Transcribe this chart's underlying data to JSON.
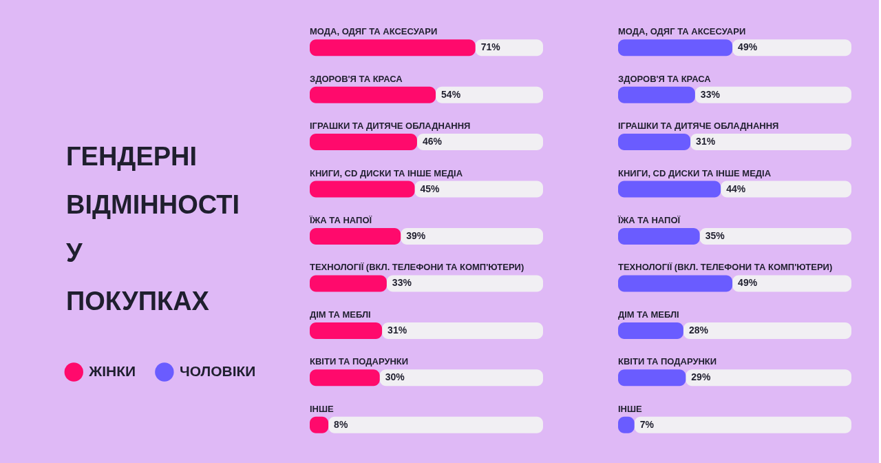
{
  "chart_data": [
    {
      "type": "bar",
      "orientation": "horizontal",
      "stacked": true,
      "title": "ГЕНДЕРНІ ВІДМІННОСТІ У ПОКУПКАХ",
      "legend": "left",
      "tick_labels": false,
      "grid": false,
      "categories": [
        "МОДА, ОДЯГ ТА АКСЕСУАРИ",
        "ЗДОРОВ'Я ТА КРАСА",
        "ІГРАШКИ ТА ДИТЯЧЕ ОБЛАДНАННЯ",
        "КНИГИ, CD ДИСКИ ТА ІНШЕ МЕДІА",
        "ЇЖА ТА НАПОЇ",
        "ТЕХНОЛОГІЇ (ВКЛ. ТЕЛЕФОНИ ТА КОМП'ЮТЕРИ)",
        "ДІМ ТА МЕБЛІ",
        "КВІТИ ТА ПОДАРУНКИ",
        "ІНШЕ"
      ],
      "series": [
        {
          "name": "ЖІНКИ",
          "color": "#ff0a6c",
          "values": [
            71,
            54,
            46,
            45,
            39,
            33,
            31,
            30,
            8
          ],
          "value_labels": [
            "71%",
            "54%",
            "46%",
            "45%",
            "39%",
            "33%",
            "31%",
            "30%",
            "8%"
          ]
        },
        {
          "color": "#f1eff3",
          "values": [
            29,
            46,
            54,
            55,
            61,
            67,
            69,
            70,
            92
          ]
        }
      ]
    },
    {
      "type": "bar",
      "orientation": "horizontal",
      "stacked": true,
      "legend": "left",
      "tick_labels": false,
      "grid": false,
      "categories": [
        "МОДА, ОДЯГ ТА АКСЕСУАРИ",
        "ЗДОРОВ'Я ТА КРАСА",
        "ІГРАШКИ ТА ДИТЯЧЕ ОБЛАДНАННЯ",
        "КНИГИ, CD ДИСКИ ТА ІНШЕ МЕДІА",
        "ЇЖА ТА НАПОЇ",
        "ТЕХНОЛОГІЇ (ВКЛ. ТЕЛЕФОНИ ТА КОМП'ЮТЕРИ)",
        "ДІМ ТА МЕБЛІ",
        "КВІТИ ТА ПОДАРУНКИ",
        "ІНШЕ"
      ],
      "series": [
        {
          "name": "ЧОЛОВІКИ",
          "color": "#6a5cff",
          "values": [
            49,
            33,
            31,
            44,
            35,
            49,
            28,
            29,
            7
          ],
          "value_labels": [
            "49%",
            "33%",
            "31%",
            "44%",
            "35%",
            "49%",
            "28%",
            "29%",
            "7%"
          ]
        },
        {
          "color": "#f1eff3",
          "values": [
            51,
            67,
            69,
            56,
            65,
            51,
            72,
            71,
            93
          ]
        }
      ]
    }
  ]
}
